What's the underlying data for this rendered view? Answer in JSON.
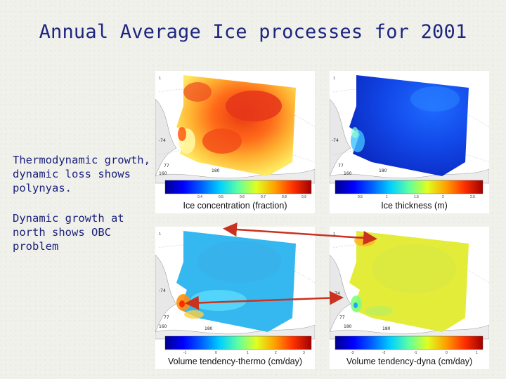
{
  "title": "Annual Average Ice processes for  2001",
  "notes": {
    "thermo": "Thermodynamic growth, dynamic loss shows polynyas.",
    "dyna": "Dynamic growth at north shows OBC problem"
  },
  "panels": [
    {
      "colorbar_label": "Ice concentration (fraction)",
      "map_labels": {
        "lat": "-74",
        "lat2": "77",
        "lon1": "160",
        "lon2": "180"
      },
      "ticks": [
        "0.4",
        "0.5",
        "0.6",
        "0.7",
        "0.8",
        "0.9"
      ]
    },
    {
      "colorbar_label": "Ice thickness (m)",
      "map_labels": {
        "lat": "-74",
        "lat2": "77",
        "lon1": "160",
        "lon2": "180"
      },
      "ticks": [
        "0.5",
        "1",
        "1.5",
        "2",
        "2.5"
      ]
    },
    {
      "colorbar_label": "Volume tendency-thermo (cm/day)",
      "map_labels": {
        "lat": "-74",
        "lat2": "77",
        "lon1": "160",
        "lon2": "180"
      },
      "ticks": [
        "-1",
        "0",
        "1",
        "2",
        "3"
      ]
    },
    {
      "colorbar_label": "Volume tendency-dyna (cm/day)",
      "map_labels": {
        "lat": "-74",
        "lat2": "77",
        "lon1": "160",
        "lon2": "180"
      },
      "ticks": [
        "-3",
        "-2",
        "-1",
        "0",
        "1"
      ]
    }
  ],
  "colors": {
    "title": "#1d2580",
    "arrow": "#c8321e",
    "colormap": [
      "#00008f",
      "#0000ff",
      "#0080ff",
      "#00ffff",
      "#80ff80",
      "#ffff00",
      "#ff8000",
      "#ff0000",
      "#800000"
    ]
  }
}
